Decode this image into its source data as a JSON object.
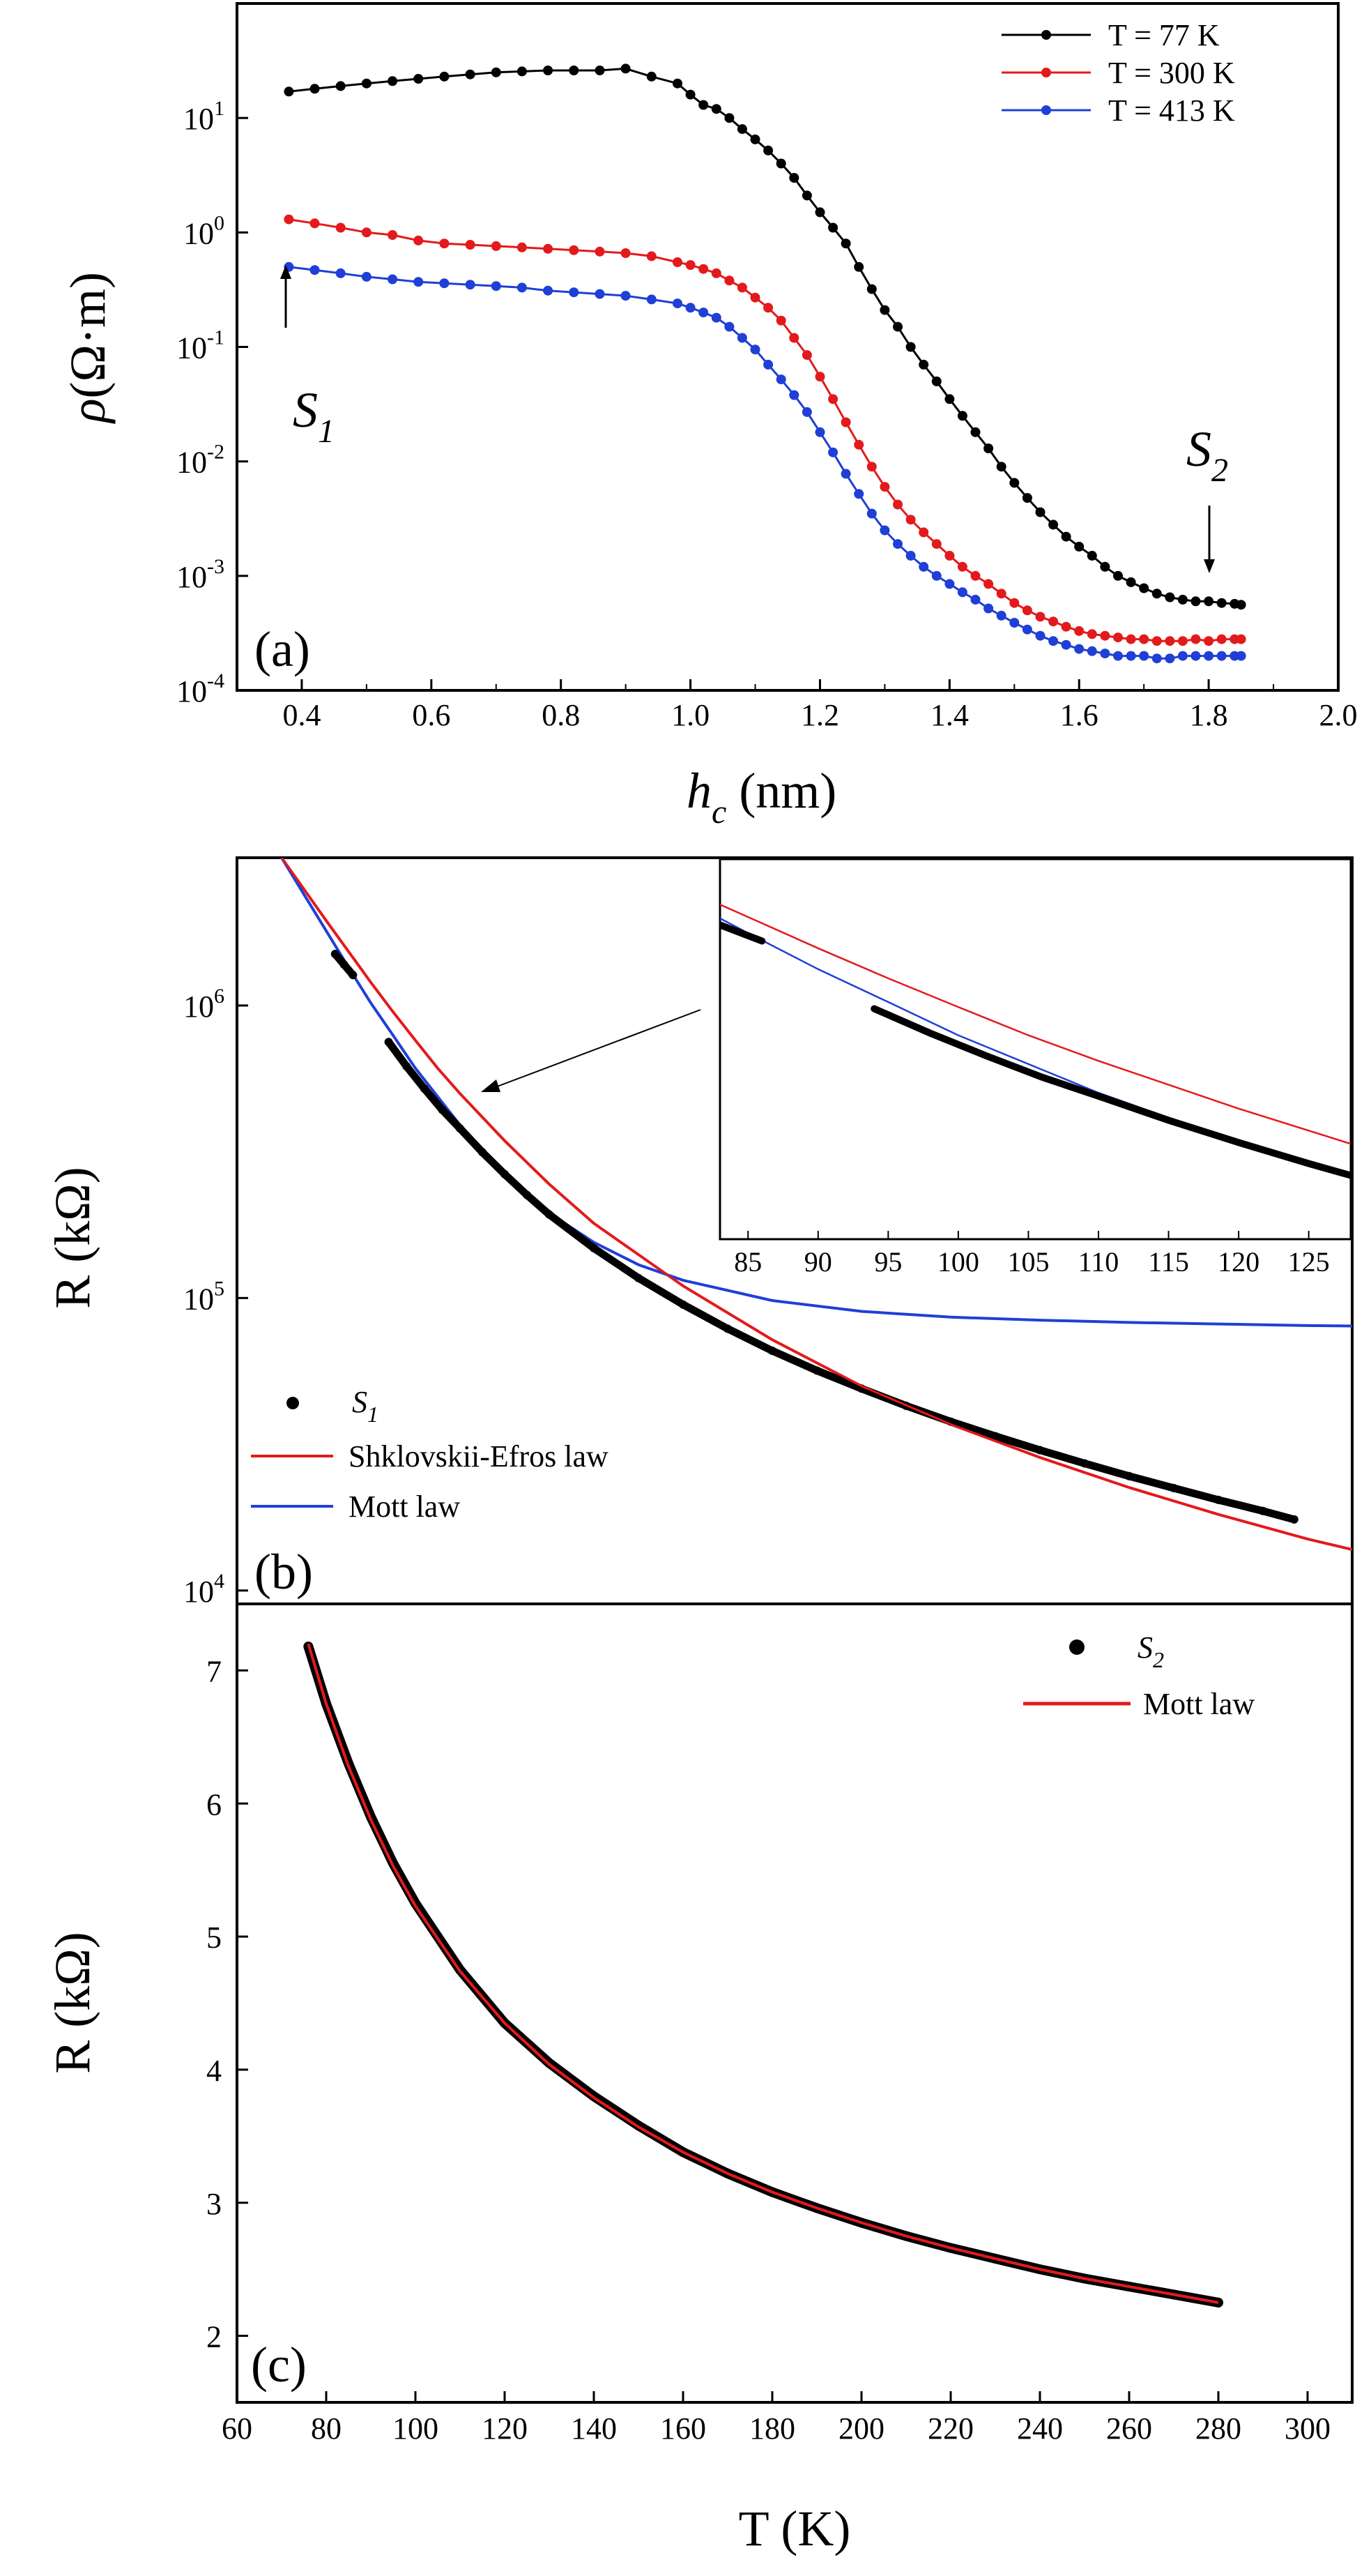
{
  "chart_data": [
    {
      "panel": "(a)",
      "type": "line",
      "xlabel_main": "h",
      "xlabel_sub": "c",
      "xlabel_unit": " (nm)",
      "ylabel_symbol": "ρ",
      "ylabel_unit": "(Ω·m)",
      "xlim": [
        0.3,
        2.0
      ],
      "ylim": [
        0.0001,
        100
      ],
      "yscale": "log",
      "grid": false,
      "legend_position": "top-right",
      "x_ticks": [
        "0.4",
        "0.6",
        "0.8",
        "1.0",
        "1.2",
        "1.4",
        "1.6",
        "1.8",
        "2.0"
      ],
      "y_ticks": [
        {
          "base": "10",
          "exp": "-4"
        },
        {
          "base": "10",
          "exp": "-3"
        },
        {
          "base": "10",
          "exp": "-2"
        },
        {
          "base": "10",
          "exp": "-1"
        },
        {
          "base": "10",
          "exp": "0"
        },
        {
          "base": "10",
          "exp": "1"
        }
      ],
      "annotations": [
        {
          "main": "S",
          "sub": "1"
        },
        {
          "main": "S",
          "sub": "2"
        }
      ],
      "x": [
        0.38,
        0.42,
        0.46,
        0.5,
        0.54,
        0.58,
        0.62,
        0.66,
        0.7,
        0.74,
        0.78,
        0.82,
        0.86,
        0.9,
        0.94,
        0.98,
        1.0,
        1.02,
        1.04,
        1.06,
        1.08,
        1.1,
        1.12,
        1.14,
        1.16,
        1.18,
        1.2,
        1.22,
        1.24,
        1.26,
        1.28,
        1.3,
        1.32,
        1.34,
        1.36,
        1.38,
        1.4,
        1.42,
        1.44,
        1.46,
        1.48,
        1.5,
        1.52,
        1.54,
        1.56,
        1.58,
        1.6,
        1.62,
        1.64,
        1.66,
        1.68,
        1.7,
        1.72,
        1.74,
        1.76,
        1.78,
        1.8,
        1.82,
        1.84,
        1.85
      ],
      "series": [
        {
          "name": "T = 77 K",
          "color": "#000000",
          "values": [
            17,
            18,
            19,
            20,
            21,
            22,
            23,
            24,
            25,
            25.5,
            26,
            26,
            26,
            27,
            23,
            20,
            16,
            13,
            12,
            10,
            8,
            6.5,
            5.2,
            4,
            3,
            2.1,
            1.5,
            1.1,
            0.8,
            0.5,
            0.32,
            0.21,
            0.15,
            0.1,
            0.07,
            0.05,
            0.035,
            0.025,
            0.018,
            0.013,
            0.009,
            0.0065,
            0.0048,
            0.0036,
            0.0028,
            0.0022,
            0.0018,
            0.0015,
            0.0012,
            0.001,
            0.00088,
            0.00078,
            0.0007,
            0.00065,
            0.00062,
            0.0006,
            0.0006,
            0.00058,
            0.00057,
            0.00056
          ]
        },
        {
          "name": "T = 300 K",
          "color": "#e31a1c",
          "values": [
            1.3,
            1.2,
            1.1,
            1.0,
            0.95,
            0.85,
            0.8,
            0.78,
            0.76,
            0.74,
            0.72,
            0.7,
            0.68,
            0.66,
            0.62,
            0.55,
            0.52,
            0.48,
            0.44,
            0.38,
            0.33,
            0.27,
            0.22,
            0.17,
            0.12,
            0.085,
            0.055,
            0.035,
            0.022,
            0.014,
            0.009,
            0.006,
            0.0042,
            0.0031,
            0.0024,
            0.0019,
            0.0015,
            0.0012,
            0.001,
            0.00085,
            0.0007,
            0.00058,
            0.0005,
            0.00044,
            0.0004,
            0.00036,
            0.00033,
            0.00031,
            0.0003,
            0.00029,
            0.00028,
            0.00028,
            0.00027,
            0.00027,
            0.00027,
            0.00028,
            0.00027,
            0.00028,
            0.00028,
            0.00028
          ]
        },
        {
          "name": "T = 413 K",
          "color": "#1f3fd6",
          "values": [
            0.5,
            0.47,
            0.44,
            0.41,
            0.39,
            0.37,
            0.36,
            0.35,
            0.34,
            0.33,
            0.31,
            0.3,
            0.29,
            0.28,
            0.26,
            0.24,
            0.22,
            0.2,
            0.18,
            0.15,
            0.12,
            0.095,
            0.07,
            0.052,
            0.038,
            0.027,
            0.018,
            0.012,
            0.0078,
            0.0052,
            0.0035,
            0.0025,
            0.0019,
            0.0015,
            0.0012,
            0.001,
            0.00085,
            0.00072,
            0.00062,
            0.00052,
            0.00045,
            0.00039,
            0.00034,
            0.0003,
            0.00027,
            0.00025,
            0.00023,
            0.00022,
            0.00021,
            0.0002,
            0.0002,
            0.0002,
            0.00019,
            0.00019,
            0.0002,
            0.0002,
            0.0002,
            0.0002,
            0.0002,
            0.0002
          ]
        }
      ]
    },
    {
      "panel": "(b)",
      "type": "line",
      "ylabel": "R (kΩ)",
      "xlim": [
        60,
        310
      ],
      "ylim": [
        9000,
        3200000
      ],
      "yscale": "log",
      "grid": false,
      "legend_position": "bottom-left",
      "y_ticks": [
        {
          "base": "10",
          "exp": "4"
        },
        {
          "base": "10",
          "exp": "5"
        },
        {
          "base": "10",
          "exp": "6"
        }
      ],
      "legend": [
        {
          "main": "S",
          "sub": "1"
        },
        {
          "label": "Shklovskii-Efros law"
        },
        {
          "label": "Mott law"
        }
      ],
      "series": [
        {
          "name": "S1",
          "kind": "data",
          "color": "#000000",
          "x": [
            82,
            84,
            86,
            94,
            98,
            102,
            106,
            110,
            115,
            120,
            125,
            130,
            140,
            150,
            160,
            170,
            180,
            190,
            200,
            210,
            220,
            230,
            240,
            250,
            260,
            270,
            280,
            290,
            297
          ],
          "values": [
            1500000,
            1380000,
            1270000,
            750000,
            620000,
            520000,
            440000,
            380000,
            315000,
            265000,
            225000,
            193000,
            148000,
            117000,
            95000,
            78500,
            66000,
            56500,
            49000,
            42800,
            37800,
            33700,
            30200,
            27200,
            24600,
            22400,
            20400,
            18700,
            17500
          ]
        },
        {
          "name": "Shklovskii-Efros law",
          "kind": "fit",
          "color": "#e31a1c",
          "x": [
            70,
            75,
            80,
            85,
            90,
            95,
            100,
            105,
            110,
            120,
            130,
            140,
            160,
            180,
            200,
            220,
            240,
            260,
            280,
            300,
            310
          ],
          "values": [
            3200000,
            2500000,
            1950000,
            1530000,
            1200000,
            950000,
            760000,
            610000,
            500000,
            345000,
            245000,
            180000,
            110000,
            72000,
            50000,
            37000,
            28500,
            22500,
            18200,
            15000,
            13800
          ]
        },
        {
          "name": "Mott law",
          "kind": "fit",
          "color": "#1f3fd6",
          "x": [
            70,
            75,
            80,
            85,
            90,
            95,
            100,
            110,
            120,
            130,
            140,
            150,
            160,
            180,
            200,
            220,
            240,
            260,
            280,
            300,
            310
          ],
          "values": [
            3200000,
            2400000,
            1800000,
            1350000,
            1020000,
            790000,
            610000,
            390000,
            265000,
            195000,
            155000,
            130000,
            115000,
            98000,
            90000,
            86000,
            84000,
            82500,
            81500,
            80500,
            80200
          ]
        }
      ],
      "inset": {
        "xlim": [
          83,
          128
        ],
        "ylim": [
          125000,
          2400000
        ],
        "yscale": "log",
        "x_ticks": [
          "85",
          "90",
          "95",
          "100",
          "105",
          "110",
          "115",
          "120",
          "125"
        ],
        "series_ref": [
          "S1",
          "Shklovskii-Efros law",
          "Mott law"
        ]
      }
    },
    {
      "panel": "(c)",
      "type": "line",
      "xlabel": "T (K)",
      "ylabel": "R (kΩ)",
      "xlim": [
        60,
        310
      ],
      "ylim": [
        1.5,
        7.5
      ],
      "grid": false,
      "legend_position": "top-right",
      "x_ticks": [
        "60",
        "80",
        "100",
        "120",
        "140",
        "160",
        "180",
        "200",
        "220",
        "240",
        "260",
        "280",
        "300"
      ],
      "y_ticks": [
        "2",
        "3",
        "4",
        "5",
        "6",
        "7"
      ],
      "legend": [
        {
          "main": "S",
          "sub": "2"
        },
        {
          "label": "Mott law"
        }
      ],
      "series": [
        {
          "name": "S2",
          "kind": "data",
          "color": "#000000",
          "x": [
            76,
            80,
            85,
            90,
            95,
            100,
            110,
            120,
            130,
            140,
            150,
            160,
            170,
            180,
            190,
            200,
            210,
            220,
            230,
            240,
            250,
            260,
            270,
            280
          ],
          "values": [
            7.18,
            6.75,
            6.3,
            5.9,
            5.55,
            5.25,
            4.75,
            4.35,
            4.05,
            3.8,
            3.58,
            3.38,
            3.22,
            3.08,
            2.96,
            2.85,
            2.75,
            2.66,
            2.58,
            2.5,
            2.43,
            2.37,
            2.31,
            2.25
          ]
        },
        {
          "name": "Mott law",
          "kind": "fit",
          "color": "#e31a1c",
          "x": [
            76,
            80,
            85,
            90,
            95,
            100,
            110,
            120,
            130,
            140,
            150,
            160,
            170,
            180,
            190,
            200,
            210,
            220,
            230,
            240,
            250,
            260,
            270,
            280
          ],
          "values": [
            7.2,
            6.75,
            6.28,
            5.88,
            5.53,
            5.23,
            4.74,
            4.35,
            4.04,
            3.79,
            3.57,
            3.38,
            3.22,
            3.08,
            2.96,
            2.85,
            2.75,
            2.66,
            2.58,
            2.5,
            2.43,
            2.37,
            2.31,
            2.25
          ]
        }
      ]
    }
  ]
}
